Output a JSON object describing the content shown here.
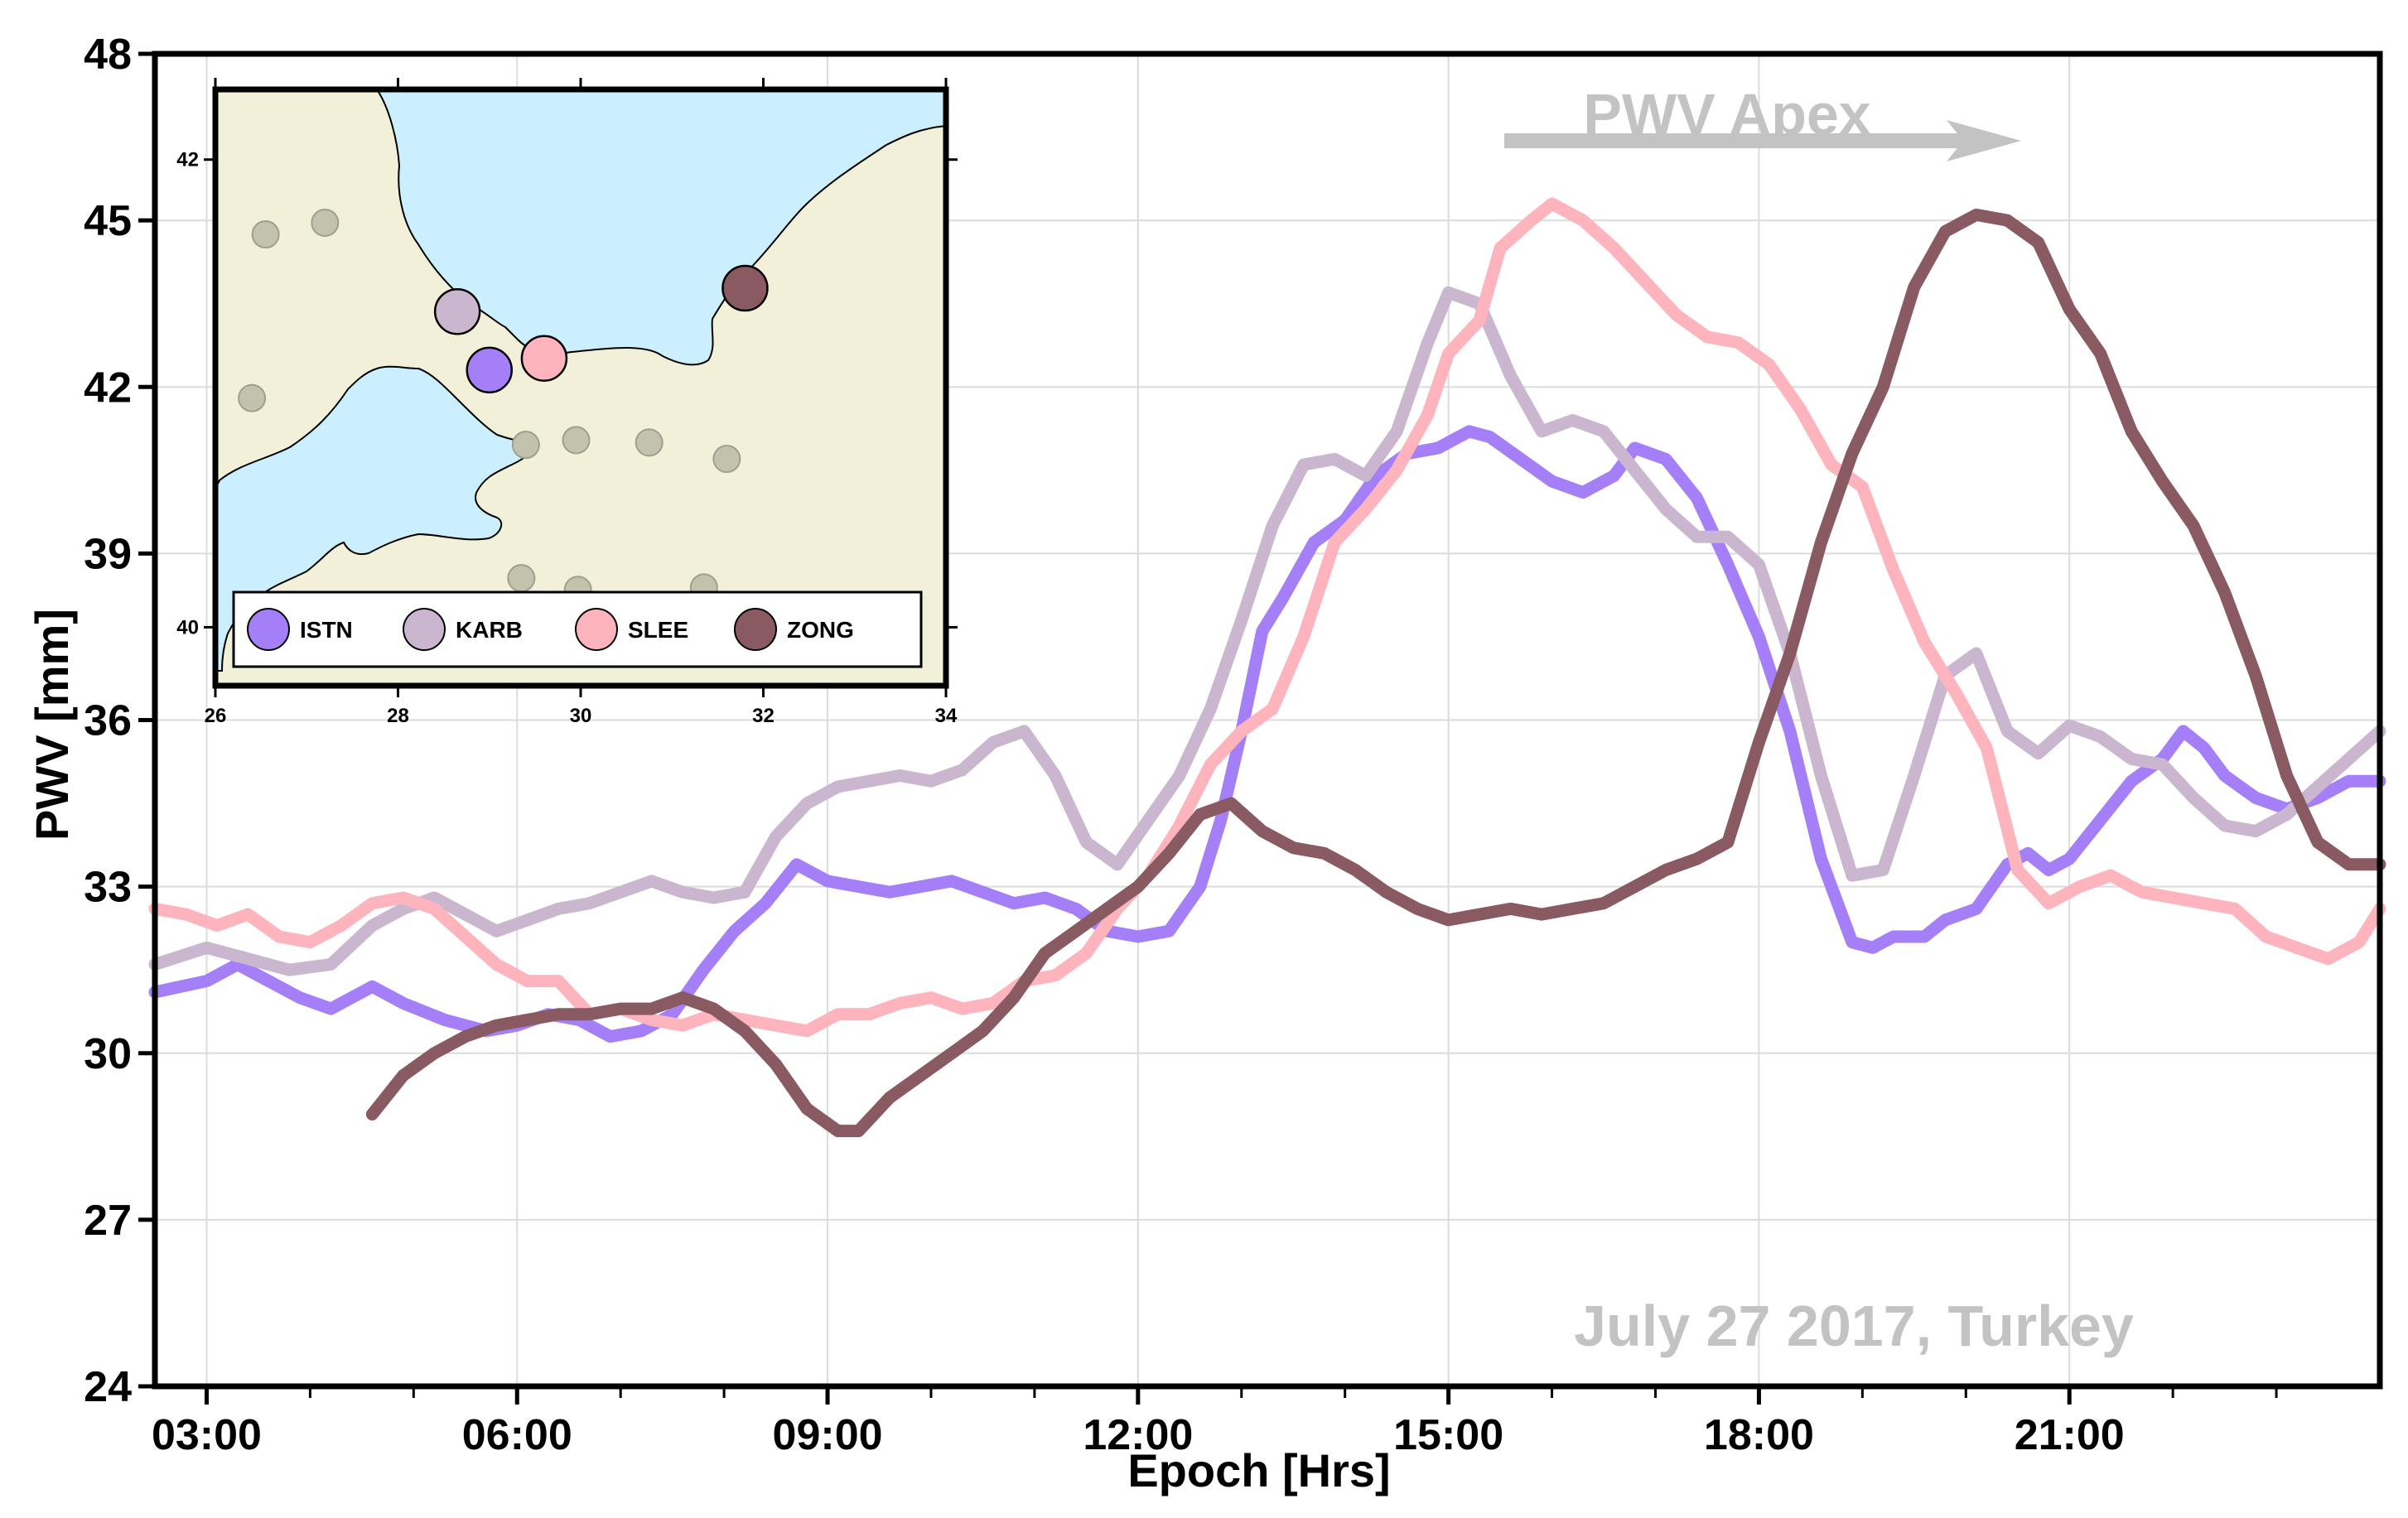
{
  "chart_data": {
    "type": "line",
    "title": "",
    "xlabel": "Epoch [Hrs]",
    "ylabel": "PWV [mm]",
    "xlim": [
      2.5,
      24.0
    ],
    "ylim": [
      24,
      48
    ],
    "grid": true,
    "x_ticks": [
      3,
      6,
      9,
      12,
      15,
      18,
      21
    ],
    "x_tick_labels": [
      "03:00",
      "06:00",
      "09:00",
      "12:00",
      "15:00",
      "18:00",
      "21:00"
    ],
    "y_ticks": [
      24,
      27,
      30,
      33,
      36,
      39,
      42,
      45,
      48
    ],
    "y_tick_labels": [
      "24",
      "27",
      "30",
      "33",
      "36",
      "39",
      "42",
      "45",
      "48"
    ],
    "annotations": {
      "apex_label": "PWV Apex",
      "date_label": "July 27 2017, Turkey"
    },
    "series": [
      {
        "name": "ISTN",
        "color": "#a57ff7",
        "x": [
          2.5,
          3.0,
          3.3,
          3.6,
          3.9,
          4.2,
          4.6,
          4.9,
          5.3,
          5.7,
          6.0,
          6.3,
          6.6,
          6.9,
          7.2,
          7.5,
          7.8,
          8.1,
          8.4,
          8.7,
          9.0,
          9.3,
          9.6,
          9.9,
          10.2,
          10.5,
          10.8,
          11.1,
          11.4,
          11.7,
          12.0,
          12.3,
          12.6,
          12.8,
          13.0,
          13.2,
          13.4,
          13.7,
          14.0,
          14.3,
          14.6,
          14.9,
          15.2,
          15.4,
          15.7,
          16.0,
          16.3,
          16.6,
          16.8,
          17.1,
          17.4,
          17.7,
          18.0,
          18.3,
          18.6,
          18.9,
          19.1,
          19.3,
          19.6,
          19.8,
          20.1,
          20.4,
          20.6,
          20.8,
          21.0,
          21.3,
          21.6,
          21.9,
          22.1,
          22.3,
          22.5,
          22.8,
          23.1,
          23.4,
          23.7,
          24.0
        ],
        "values": [
          31.1,
          31.3,
          31.6,
          31.3,
          31.0,
          30.8,
          31.2,
          30.9,
          30.6,
          30.4,
          30.5,
          30.7,
          30.6,
          30.3,
          30.4,
          30.7,
          31.5,
          32.2,
          32.7,
          33.4,
          33.1,
          33.0,
          32.9,
          33.0,
          33.1,
          32.9,
          32.7,
          32.8,
          32.6,
          32.2,
          32.1,
          32.2,
          33.0,
          34.2,
          35.8,
          37.6,
          38.2,
          39.2,
          39.6,
          40.4,
          40.8,
          40.9,
          41.2,
          41.1,
          40.7,
          40.3,
          40.1,
          40.4,
          40.9,
          40.7,
          40.0,
          38.8,
          37.5,
          35.8,
          33.5,
          32.0,
          31.9,
          32.1,
          32.1,
          32.4,
          32.6,
          33.4,
          33.6,
          33.3,
          33.5,
          34.2,
          34.9,
          35.3,
          35.8,
          35.5,
          35.0,
          34.6,
          34.4,
          34.6,
          34.9,
          34.9
        ]
      },
      {
        "name": "KARB",
        "color": "#cab6cf",
        "x": [
          2.5,
          3.0,
          3.4,
          3.8,
          4.2,
          4.6,
          4.9,
          5.2,
          5.5,
          5.8,
          6.1,
          6.4,
          6.7,
          7.0,
          7.3,
          7.6,
          7.9,
          8.2,
          8.5,
          8.8,
          9.1,
          9.4,
          9.7,
          10.0,
          10.3,
          10.6,
          10.9,
          11.2,
          11.5,
          11.8,
          12.1,
          12.4,
          12.7,
          13.0,
          13.3,
          13.6,
          13.9,
          14.2,
          14.5,
          14.8,
          15.0,
          15.3,
          15.6,
          15.9,
          16.2,
          16.5,
          16.8,
          17.1,
          17.4,
          17.7,
          18.0,
          18.3,
          18.6,
          18.9,
          19.2,
          19.5,
          19.8,
          20.1,
          20.4,
          20.7,
          21.0,
          21.3,
          21.6,
          21.9,
          22.2,
          22.5,
          22.8,
          23.1,
          23.4,
          23.7,
          24.0
        ],
        "values": [
          31.6,
          31.9,
          31.7,
          31.5,
          31.6,
          32.3,
          32.6,
          32.8,
          32.5,
          32.2,
          32.4,
          32.6,
          32.7,
          32.9,
          33.1,
          32.9,
          32.8,
          32.9,
          33.9,
          34.5,
          34.8,
          34.9,
          35.0,
          34.9,
          35.1,
          35.6,
          35.8,
          35.0,
          33.8,
          33.4,
          34.2,
          35.0,
          36.2,
          37.8,
          39.5,
          40.6,
          40.7,
          40.4,
          41.2,
          42.8,
          43.7,
          43.5,
          42.2,
          41.2,
          41.4,
          41.2,
          40.5,
          39.8,
          39.3,
          39.3,
          38.8,
          37.2,
          35.0,
          33.2,
          33.3,
          35.0,
          36.8,
          37.2,
          35.8,
          35.4,
          35.9,
          35.7,
          35.3,
          35.2,
          34.6,
          34.1,
          34.0,
          34.3,
          34.8,
          35.3,
          35.8
        ]
      },
      {
        "name": "SLEE",
        "color": "#feb4bc",
        "x": [
          2.5,
          2.8,
          3.1,
          3.4,
          3.7,
          4.0,
          4.3,
          4.6,
          4.9,
          5.2,
          5.5,
          5.8,
          6.1,
          6.4,
          6.7,
          7.0,
          7.3,
          7.6,
          7.9,
          8.2,
          8.5,
          8.8,
          9.1,
          9.4,
          9.7,
          10.0,
          10.3,
          10.6,
          10.9,
          11.2,
          11.5,
          11.8,
          12.1,
          12.4,
          12.7,
          13.0,
          13.3,
          13.6,
          13.9,
          14.2,
          14.5,
          14.8,
          15.0,
          15.3,
          15.5,
          15.8,
          16.0,
          16.3,
          16.6,
          16.9,
          17.2,
          17.5,
          17.8,
          18.1,
          18.4,
          18.7,
          19.0,
          19.3,
          19.6,
          19.9,
          20.2,
          20.5,
          20.8,
          21.1,
          21.4,
          21.7,
          22.0,
          22.3,
          22.6,
          22.9,
          23.2,
          23.5,
          23.8,
          24.0
        ],
        "values": [
          32.6,
          32.5,
          32.3,
          32.5,
          32.1,
          32.0,
          32.3,
          32.7,
          32.8,
          32.6,
          32.1,
          31.6,
          31.3,
          31.3,
          30.7,
          30.8,
          30.6,
          30.5,
          30.7,
          30.6,
          30.5,
          30.4,
          30.7,
          30.7,
          30.9,
          31.0,
          30.8,
          30.9,
          31.3,
          31.4,
          31.8,
          32.6,
          33.2,
          34.1,
          35.2,
          35.8,
          36.2,
          37.5,
          39.2,
          39.8,
          40.5,
          41.5,
          42.6,
          43.2,
          44.5,
          45.0,
          45.3,
          45.0,
          44.5,
          43.9,
          43.3,
          42.9,
          42.8,
          42.4,
          41.6,
          40.6,
          40.2,
          38.7,
          37.4,
          36.5,
          35.5,
          33.3,
          32.7,
          33.0,
          33.2,
          32.9,
          32.8,
          32.7,
          32.6,
          32.1,
          31.9,
          31.7,
          32.0,
          32.6
        ]
      },
      {
        "name": "ZONG",
        "color": "#8a5a63",
        "x": [
          4.6,
          4.9,
          5.2,
          5.5,
          5.8,
          6.1,
          6.4,
          6.7,
          7.0,
          7.3,
          7.6,
          7.9,
          8.2,
          8.5,
          8.8,
          9.1,
          9.3,
          9.6,
          9.9,
          10.2,
          10.5,
          10.8,
          11.1,
          11.4,
          11.7,
          12.0,
          12.3,
          12.6,
          12.9,
          13.2,
          13.5,
          13.8,
          14.1,
          14.4,
          14.7,
          15.0,
          15.3,
          15.6,
          15.9,
          16.2,
          16.5,
          16.8,
          17.1,
          17.4,
          17.7,
          18.0,
          18.3,
          18.6,
          18.9,
          19.2,
          19.5,
          19.8,
          20.1,
          20.4,
          20.7,
          21.0,
          21.3,
          21.6,
          21.9,
          22.2,
          22.5,
          22.8,
          23.1,
          23.4,
          23.7,
          24.0
        ],
        "values": [
          28.9,
          29.6,
          30.0,
          30.3,
          30.5,
          30.6,
          30.7,
          30.7,
          30.8,
          30.8,
          31.0,
          30.8,
          30.4,
          29.8,
          29.0,
          28.6,
          28.6,
          29.2,
          29.6,
          30.0,
          30.4,
          31.0,
          31.8,
          32.2,
          32.6,
          33.0,
          33.6,
          34.3,
          34.5,
          34.0,
          33.7,
          33.6,
          33.3,
          32.9,
          32.6,
          32.4,
          32.5,
          32.6,
          32.5,
          32.6,
          32.7,
          33.0,
          33.3,
          33.5,
          33.8,
          35.6,
          37.2,
          39.2,
          40.8,
          42.0,
          43.8,
          44.8,
          45.1,
          45.0,
          44.6,
          43.4,
          42.6,
          41.2,
          40.3,
          39.5,
          38.3,
          36.8,
          35.0,
          33.8,
          33.4,
          33.4
        ]
      }
    ]
  },
  "inset_map": {
    "lon_ticks": [
      "26",
      "28",
      "30",
      "32",
      "34"
    ],
    "lat_ticks": [
      "42",
      "40"
    ],
    "lon_range": [
      26,
      34
    ],
    "lat_range": [
      39.75,
      42.3
    ],
    "stations": [
      {
        "name": "ISTN",
        "lon": 29.0,
        "lat": 41.1,
        "color": "#a57ff7"
      },
      {
        "name": "KARB",
        "lon": 28.65,
        "lat": 41.35,
        "color": "#cab6cf"
      },
      {
        "name": "SLEE",
        "lon": 29.6,
        "lat": 41.15,
        "color": "#feb4bc"
      },
      {
        "name": "ZONG",
        "lon": 31.8,
        "lat": 41.45,
        "color": "#8a5a63"
      }
    ],
    "other_stations": [
      {
        "lon": 26.55,
        "lat": 41.68
      },
      {
        "lon": 27.2,
        "lat": 41.73
      },
      {
        "lon": 26.4,
        "lat": 40.98
      },
      {
        "lon": 29.4,
        "lat": 40.78
      },
      {
        "lon": 29.95,
        "lat": 40.8
      },
      {
        "lon": 30.75,
        "lat": 40.79
      },
      {
        "lon": 31.6,
        "lat": 40.72
      },
      {
        "lon": 29.35,
        "lat": 40.21
      },
      {
        "lon": 29.97,
        "lat": 40.16
      },
      {
        "lon": 31.35,
        "lat": 40.17
      }
    ],
    "colors": {
      "sea": "#ccefff",
      "land": "#f2f0d9",
      "dot": "#c2c2ad"
    }
  }
}
